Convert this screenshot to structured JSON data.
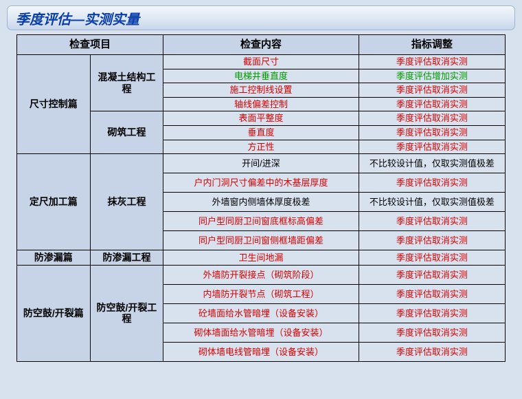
{
  "title": "季度评估—实测实量",
  "headers": {
    "c1": "检查项目",
    "c2": "检查内容",
    "c3": "指标调整"
  },
  "colors": {
    "header_bg": "#c7d4e7",
    "page_bg": "#d8e2ee",
    "title_color": "#0a3ea8",
    "border": "#000000",
    "red": "#d90000",
    "green": "#009a00",
    "black": "#000000"
  },
  "col_widths_pct": [
    15,
    15,
    40,
    30
  ],
  "sections": [
    {
      "name": "尺寸控制篇",
      "subs": [
        {
          "name": "混凝土结构工程",
          "rows": [
            {
              "content": "截面尺寸",
              "c_color": "red",
              "adjust": "季度评估取消实测",
              "a_color": "red",
              "h": "s"
            },
            {
              "content": "电梯井垂直度",
              "c_color": "green",
              "adjust": "季度评估增加实测",
              "a_color": "green",
              "h": "s"
            },
            {
              "content": "施工控制线设置",
              "c_color": "red",
              "adjust": "季度评估取消实测",
              "a_color": "red",
              "h": "s"
            },
            {
              "content": "轴线偏差控制",
              "c_color": "red",
              "adjust": "季度评估取消实测",
              "a_color": "red",
              "h": "s"
            }
          ]
        },
        {
          "name": "砌筑工程",
          "rows": [
            {
              "content": "表面平整度",
              "c_color": "red",
              "adjust": "季度评估取消实测",
              "a_color": "red",
              "h": "s"
            },
            {
              "content": "垂直度",
              "c_color": "red",
              "adjust": "季度评估取消实测",
              "a_color": "red",
              "h": "s"
            },
            {
              "content": "方正性",
              "c_color": "red",
              "adjust": "季度评估取消实测",
              "a_color": "red",
              "h": "s"
            }
          ]
        }
      ]
    },
    {
      "name": "定尺加工篇",
      "subs": [
        {
          "name": "抹灰工程",
          "rows": [
            {
              "content": "开间/进深",
              "c_color": "black",
              "adjust": "不比较设计值，仅取实测值极差",
              "a_color": "black",
              "h": "m"
            },
            {
              "content": "户内门洞尺寸偏差中的木基层厚度",
              "c_color": "red",
              "adjust": "季度评估取消实测",
              "a_color": "red",
              "h": "m"
            },
            {
              "content": "外墙窗内侧墙体厚度极差",
              "c_color": "black",
              "adjust": "不比较设计值，仅取实测值极差",
              "a_color": "black",
              "h": "m"
            },
            {
              "content": "同户型同厨卫间窗底框标高偏差",
              "c_color": "red",
              "adjust": "季度评估取消实测",
              "a_color": "red",
              "h": "m"
            },
            {
              "content": "同户型同厨卫间窗侧框墙距偏差",
              "c_color": "red",
              "adjust": "季度评估取消实测",
              "a_color": "red",
              "h": "m"
            }
          ]
        }
      ]
    },
    {
      "name": "防渗漏篇",
      "subs": [
        {
          "name": "防渗漏工程",
          "rows": [
            {
              "content": "卫生间地漏",
              "c_color": "red",
              "adjust": "季度评估取消实测",
              "a_color": "red",
              "h": "s"
            }
          ]
        }
      ]
    },
    {
      "name": "防空鼓/开裂篇",
      "subs": [
        {
          "name": "防空鼓/开裂工程",
          "rows": [
            {
              "content": "外墙防开裂接点（砌筑阶段）",
              "c_color": "red",
              "adjust": "季度评估取消实测",
              "a_color": "red",
              "h": "m"
            },
            {
              "content": "内墙防开裂节点（砌筑工程）",
              "c_color": "red",
              "adjust": "季度评估取消实测",
              "a_color": "red",
              "h": "m"
            },
            {
              "content": "砼墙面给水管暗埋（设备安装）",
              "c_color": "red",
              "adjust": "季度评估取消实测",
              "a_color": "red",
              "h": "m"
            },
            {
              "content": "砌体墙面给水管暗埋（设备安装）",
              "c_color": "red",
              "adjust": "季度评估取消实测",
              "a_color": "red",
              "h": "m"
            },
            {
              "content": "砌体墙电线管暗埋（设备安装）",
              "c_color": "red",
              "adjust": "季度评估取消实测",
              "a_color": "red",
              "h": "m"
            }
          ]
        }
      ]
    }
  ]
}
